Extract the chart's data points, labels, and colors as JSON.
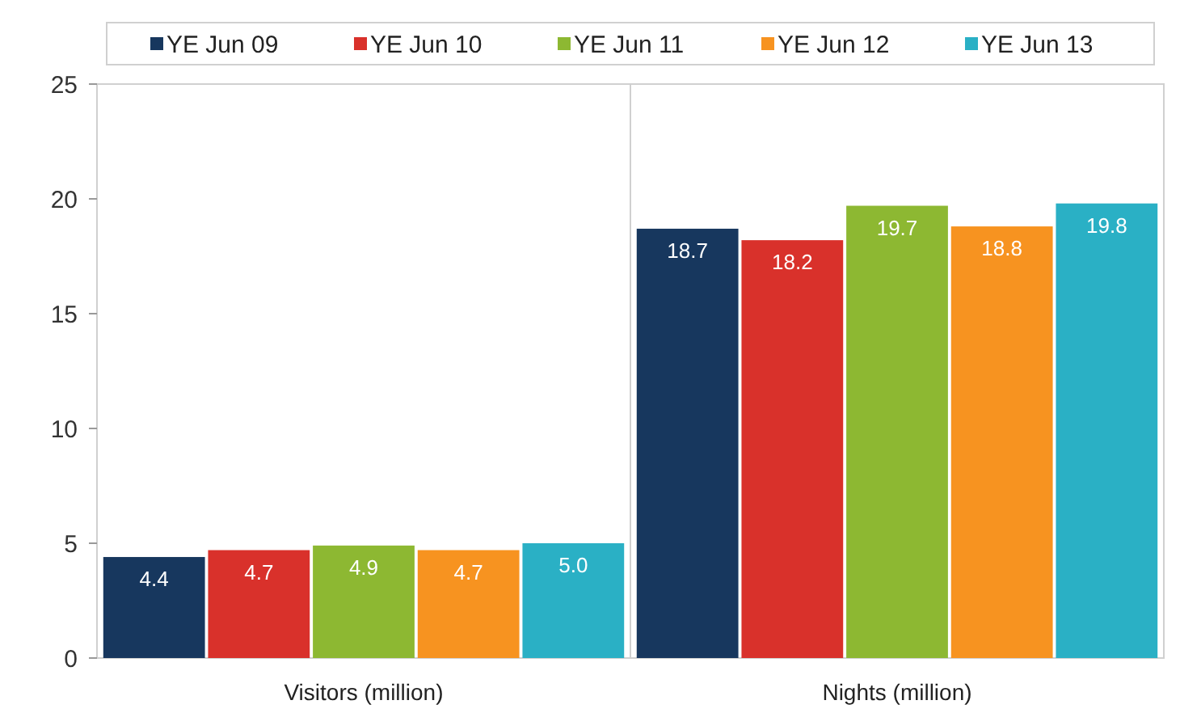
{
  "chart_data": {
    "type": "bar",
    "categories": [
      "Visitors (million)",
      "Nights (million)"
    ],
    "series": [
      {
        "name": "YE Jun 09",
        "color": "#17375e",
        "values": [
          4.4,
          18.7
        ],
        "value_labels": [
          "4.4",
          "18.7"
        ]
      },
      {
        "name": "YE Jun 10",
        "color": "#d9312b",
        "values": [
          4.7,
          18.2
        ],
        "value_labels": [
          "4.7",
          "18.2"
        ]
      },
      {
        "name": "YE Jun 11",
        "color": "#8db832",
        "values": [
          4.9,
          19.7
        ],
        "value_labels": [
          "4.9",
          "19.7"
        ]
      },
      {
        "name": "YE Jun 12",
        "color": "#f79320",
        "values": [
          4.7,
          18.8
        ],
        "value_labels": [
          "4.7",
          "18.8"
        ]
      },
      {
        "name": "YE Jun 13",
        "color": "#2ab0c5",
        "values": [
          5.0,
          19.8
        ],
        "value_labels": [
          "5.0",
          "19.8"
        ]
      }
    ],
    "ylim": [
      0,
      25
    ],
    "yticks": [
      0,
      5,
      10,
      15,
      20,
      25
    ],
    "legend": "top",
    "grid": false
  }
}
